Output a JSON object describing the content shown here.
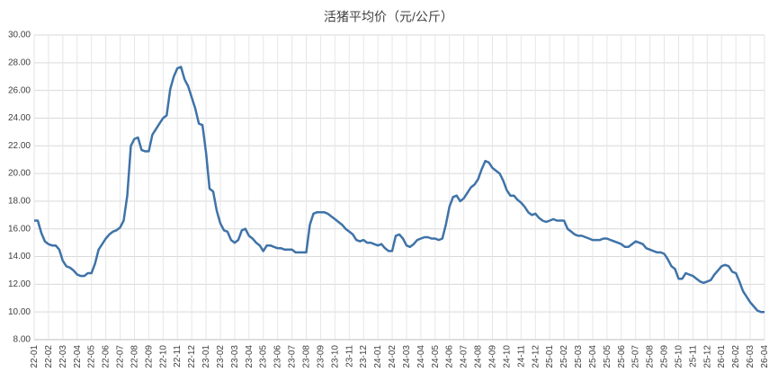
{
  "chart_data": {
    "type": "line",
    "title": "活猪平均价（元/公斤）",
    "color": "#3f73a8",
    "grid": true,
    "categories": [
      "22-01",
      null,
      null,
      null,
      "22-02",
      null,
      null,
      null,
      "22-03",
      null,
      null,
      null,
      "22-04",
      null,
      null,
      null,
      "22-05",
      null,
      null,
      null,
      "22-06",
      null,
      null,
      null,
      "22-07",
      null,
      null,
      null,
      "22-08",
      null,
      null,
      null,
      "22-09",
      null,
      null,
      null,
      "22-10",
      null,
      null,
      null,
      "22-11",
      null,
      null,
      null,
      "22-12",
      null,
      null,
      null,
      "23-01",
      null,
      null,
      null,
      "23-02",
      null,
      null,
      null,
      "23-03",
      null,
      null,
      null,
      "23-04",
      null,
      null,
      null,
      "23-05",
      null,
      null,
      null,
      "23-06",
      null,
      null,
      null,
      "23-07",
      null,
      null,
      null,
      "23-08",
      null,
      null,
      null,
      "23-09",
      null,
      null,
      null,
      "23-10",
      null,
      null,
      null,
      "23-11",
      null,
      null,
      null,
      "23-12",
      null,
      null,
      null,
      "24-01",
      null,
      null,
      null,
      "24-02",
      null,
      null,
      null,
      "24-03",
      null,
      null,
      null,
      "24-04",
      null,
      null,
      null,
      "24-05",
      null,
      null,
      null,
      "24-06",
      null,
      null,
      null,
      "24-07",
      null,
      null,
      null,
      "24-08",
      null,
      null,
      null,
      "24-09",
      null,
      null,
      null,
      "24-10",
      null,
      null,
      null,
      "24-11",
      null,
      null,
      null,
      "24-12",
      null,
      null,
      null,
      "25-01",
      null,
      null,
      null,
      "25-02",
      null,
      null,
      null,
      "25-03",
      null,
      null,
      null,
      "25-04",
      null,
      null,
      null,
      "25-05",
      null,
      null,
      null,
      "25-06",
      null,
      null,
      null,
      "25-07",
      null,
      null,
      null,
      "25-08",
      null,
      null,
      null,
      "25-09",
      null,
      null,
      null,
      "25-10",
      null,
      null,
      null,
      "25-11",
      null,
      null,
      null,
      "25-12",
      null,
      null,
      null,
      "26-01",
      null,
      null,
      null,
      "26-02",
      null,
      null,
      null,
      "26-03",
      null,
      null,
      null,
      "26-04"
    ],
    "values": [
      16.6,
      16.6,
      15.7,
      15.1,
      14.9,
      14.8,
      14.8,
      14.5,
      13.7,
      13.3,
      13.2,
      13.0,
      12.7,
      12.6,
      12.6,
      12.8,
      12.8,
      13.5,
      14.5,
      14.9,
      15.3,
      15.6,
      15.8,
      15.9,
      16.1,
      16.6,
      18.4,
      22.0,
      22.5,
      22.6,
      21.7,
      21.6,
      21.6,
      22.8,
      23.2,
      23.6,
      24.0,
      24.2,
      26.1,
      27.0,
      27.6,
      27.7,
      26.8,
      26.3,
      25.5,
      24.7,
      23.6,
      23.5,
      21.5,
      18.9,
      18.7,
      17.3,
      16.4,
      15.9,
      15.8,
      15.2,
      15.0,
      15.2,
      15.9,
      16.0,
      15.5,
      15.3,
      15.0,
      14.8,
      14.4,
      14.8,
      14.8,
      14.7,
      14.6,
      14.6,
      14.5,
      14.5,
      14.5,
      14.3,
      14.3,
      14.3,
      14.3,
      16.3,
      17.1,
      17.2,
      17.2,
      17.2,
      17.1,
      16.9,
      16.7,
      16.5,
      16.3,
      16.0,
      15.8,
      15.6,
      15.2,
      15.1,
      15.2,
      15.0,
      15.0,
      14.9,
      14.8,
      14.9,
      14.6,
      14.4,
      14.4,
      15.5,
      15.6,
      15.3,
      14.8,
      14.7,
      14.9,
      15.2,
      15.3,
      15.4,
      15.4,
      15.3,
      15.3,
      15.2,
      15.3,
      16.3,
      17.6,
      18.3,
      18.4,
      18.0,
      18.2,
      18.6,
      19.0,
      19.2,
      19.6,
      20.3,
      20.9,
      20.8,
      20.4,
      20.2,
      20.0,
      19.5,
      18.8,
      18.4,
      18.4,
      18.1,
      17.9,
      17.6,
      17.2,
      17.0,
      17.1,
      16.8,
      16.6,
      16.5,
      16.6,
      16.7,
      16.6,
      16.6,
      16.6,
      16.0,
      15.8,
      15.6,
      15.5,
      15.5,
      15.4,
      15.3,
      15.2,
      15.2,
      15.2,
      15.3,
      15.3,
      15.2,
      15.1,
      15.0,
      14.9,
      14.7,
      14.7,
      14.9,
      15.1,
      15.0,
      14.9,
      14.6,
      14.5,
      14.4,
      14.3,
      14.3,
      14.2,
      13.8,
      13.3,
      13.1,
      12.4,
      12.4,
      12.8,
      12.7,
      12.6,
      12.4,
      12.2,
      12.1,
      12.2,
      12.3,
      12.7,
      13.0,
      13.3,
      13.4,
      13.3,
      12.9,
      12.8,
      12.2,
      11.5,
      11.1,
      10.7,
      10.4,
      10.1,
      10.0,
      10.0
    ],
    "ylim": [
      8,
      30
    ],
    "yticks": [
      {
        "value": 8,
        "label": "8.00"
      },
      {
        "value": 10,
        "label": "10.00"
      },
      {
        "value": 12,
        "label": "12.00"
      },
      {
        "value": 14,
        "label": "14.00"
      },
      {
        "value": 16,
        "label": "16.00"
      },
      {
        "value": 18,
        "label": "18.00"
      },
      {
        "value": 20,
        "label": "20.00"
      },
      {
        "value": 22,
        "label": "22.00"
      },
      {
        "value": 24,
        "label": "24.00"
      },
      {
        "value": 26,
        "label": "26.00"
      },
      {
        "value": 28,
        "label": "28.00"
      },
      {
        "value": 30,
        "label": "30.00"
      }
    ]
  }
}
